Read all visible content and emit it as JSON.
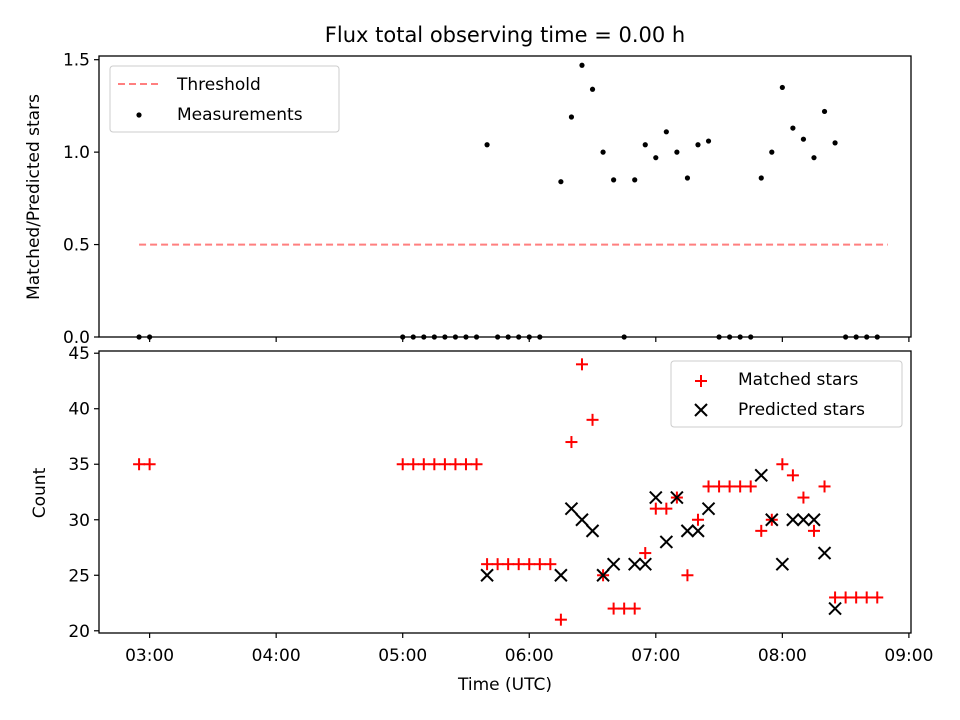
{
  "figure": {
    "title": "Flux total observing time = 0.00 h"
  },
  "chart_data": [
    {
      "type": "scatter",
      "title": "Flux total observing time = 0.00 h",
      "xlabel": "",
      "ylabel": "Matched/Predicted stars",
      "xlim": [
        "02:36",
        "09:01"
      ],
      "ylim": [
        0,
        1.52
      ],
      "x_ticks": [
        "03:00",
        "04:00",
        "05:00",
        "06:00",
        "07:00",
        "08:00",
        "09:00"
      ],
      "y_ticks": [
        "0.0",
        "0.5",
        "1.0",
        "1.5"
      ],
      "grid": false,
      "legend": "top-left",
      "threshold": {
        "name": "Threshold",
        "value": 0.5,
        "x_start": "02:55",
        "x_end": "08:50",
        "color": "#ff7f7f",
        "style": "dashed"
      },
      "series": [
        {
          "name": "Measurements",
          "color": "#000000",
          "marker": "dot",
          "points": [
            [
              "02:55",
              0
            ],
            [
              "03:00",
              0
            ],
            [
              "05:00",
              0
            ],
            [
              "05:05",
              0
            ],
            [
              "05:10",
              0
            ],
            [
              "05:15",
              0
            ],
            [
              "05:20",
              0
            ],
            [
              "05:25",
              0
            ],
            [
              "05:30",
              0
            ],
            [
              "05:35",
              0
            ],
            [
              "05:40",
              1.04
            ],
            [
              "05:45",
              0
            ],
            [
              "05:50",
              0
            ],
            [
              "05:55",
              0
            ],
            [
              "06:00",
              0
            ],
            [
              "06:05",
              0
            ],
            [
              "06:15",
              0.84
            ],
            [
              "06:20",
              1.19
            ],
            [
              "06:25",
              1.47
            ],
            [
              "06:30",
              1.34
            ],
            [
              "06:35",
              1.0
            ],
            [
              "06:40",
              0.85
            ],
            [
              "06:45",
              0
            ],
            [
              "06:50",
              0.85
            ],
            [
              "06:55",
              1.04
            ],
            [
              "07:00",
              0.97
            ],
            [
              "07:05",
              1.11
            ],
            [
              "07:10",
              1.0
            ],
            [
              "07:15",
              0.86
            ],
            [
              "07:20",
              1.04
            ],
            [
              "07:25",
              1.06
            ],
            [
              "07:30",
              0
            ],
            [
              "07:35",
              0
            ],
            [
              "07:40",
              0
            ],
            [
              "07:45",
              0
            ],
            [
              "07:50",
              0.86
            ],
            [
              "07:55",
              1.0
            ],
            [
              "08:00",
              1.35
            ],
            [
              "08:05",
              1.13
            ],
            [
              "08:10",
              1.07
            ],
            [
              "08:15",
              0.97
            ],
            [
              "08:20",
              1.22
            ],
            [
              "08:25",
              1.05
            ],
            [
              "08:30",
              0
            ],
            [
              "08:35",
              0
            ],
            [
              "08:40",
              0
            ],
            [
              "08:45",
              0
            ]
          ]
        }
      ]
    },
    {
      "type": "scatter",
      "title": "",
      "xlabel": "Time (UTC)",
      "ylabel": "Count",
      "xlim": [
        "02:36",
        "09:01"
      ],
      "ylim": [
        19.8,
        45.2
      ],
      "x_ticks": [
        "03:00",
        "04:00",
        "05:00",
        "06:00",
        "07:00",
        "08:00",
        "09:00"
      ],
      "y_ticks": [
        "20",
        "25",
        "30",
        "35",
        "40",
        "45"
      ],
      "grid": false,
      "legend": "top-right",
      "series": [
        {
          "name": "Matched stars",
          "color": "#ff0000",
          "marker": "plus",
          "points": [
            [
              "02:55",
              35
            ],
            [
              "03:00",
              35
            ],
            [
              "05:00",
              35
            ],
            [
              "05:05",
              35
            ],
            [
              "05:10",
              35
            ],
            [
              "05:15",
              35
            ],
            [
              "05:20",
              35
            ],
            [
              "05:25",
              35
            ],
            [
              "05:30",
              35
            ],
            [
              "05:35",
              35
            ],
            [
              "05:40",
              26
            ],
            [
              "05:45",
              26
            ],
            [
              "05:50",
              26
            ],
            [
              "05:55",
              26
            ],
            [
              "06:00",
              26
            ],
            [
              "06:05",
              26
            ],
            [
              "06:10",
              26
            ],
            [
              "06:15",
              21
            ],
            [
              "06:20",
              37
            ],
            [
              "06:25",
              44
            ],
            [
              "06:30",
              39
            ],
            [
              "06:35",
              25
            ],
            [
              "06:40",
              22
            ],
            [
              "06:45",
              22
            ],
            [
              "06:50",
              22
            ],
            [
              "06:55",
              27
            ],
            [
              "07:00",
              31
            ],
            [
              "07:05",
              31
            ],
            [
              "07:10",
              32
            ],
            [
              "07:15",
              25
            ],
            [
              "07:20",
              30
            ],
            [
              "07:25",
              33
            ],
            [
              "07:30",
              33
            ],
            [
              "07:35",
              33
            ],
            [
              "07:40",
              33
            ],
            [
              "07:45",
              33
            ],
            [
              "07:50",
              29
            ],
            [
              "07:55",
              30
            ],
            [
              "08:00",
              35
            ],
            [
              "08:05",
              34
            ],
            [
              "08:10",
              32
            ],
            [
              "08:15",
              29
            ],
            [
              "08:20",
              33
            ],
            [
              "08:25",
              23
            ],
            [
              "08:30",
              23
            ],
            [
              "08:35",
              23
            ],
            [
              "08:40",
              23
            ],
            [
              "08:45",
              23
            ]
          ]
        },
        {
          "name": "Predicted stars",
          "color": "#000000",
          "marker": "x",
          "points": [
            [
              "05:40",
              25
            ],
            [
              "06:15",
              25
            ],
            [
              "06:20",
              31
            ],
            [
              "06:25",
              30
            ],
            [
              "06:30",
              29
            ],
            [
              "06:35",
              25
            ],
            [
              "06:40",
              26
            ],
            [
              "06:50",
              26
            ],
            [
              "06:55",
              26
            ],
            [
              "07:00",
              32
            ],
            [
              "07:05",
              28
            ],
            [
              "07:10",
              32
            ],
            [
              "07:15",
              29
            ],
            [
              "07:20",
              29
            ],
            [
              "07:25",
              31
            ],
            [
              "07:50",
              34
            ],
            [
              "07:55",
              30
            ],
            [
              "08:00",
              26
            ],
            [
              "08:05",
              30
            ],
            [
              "08:10",
              30
            ],
            [
              "08:15",
              30
            ],
            [
              "08:20",
              27
            ],
            [
              "08:25",
              22
            ]
          ]
        }
      ]
    }
  ]
}
